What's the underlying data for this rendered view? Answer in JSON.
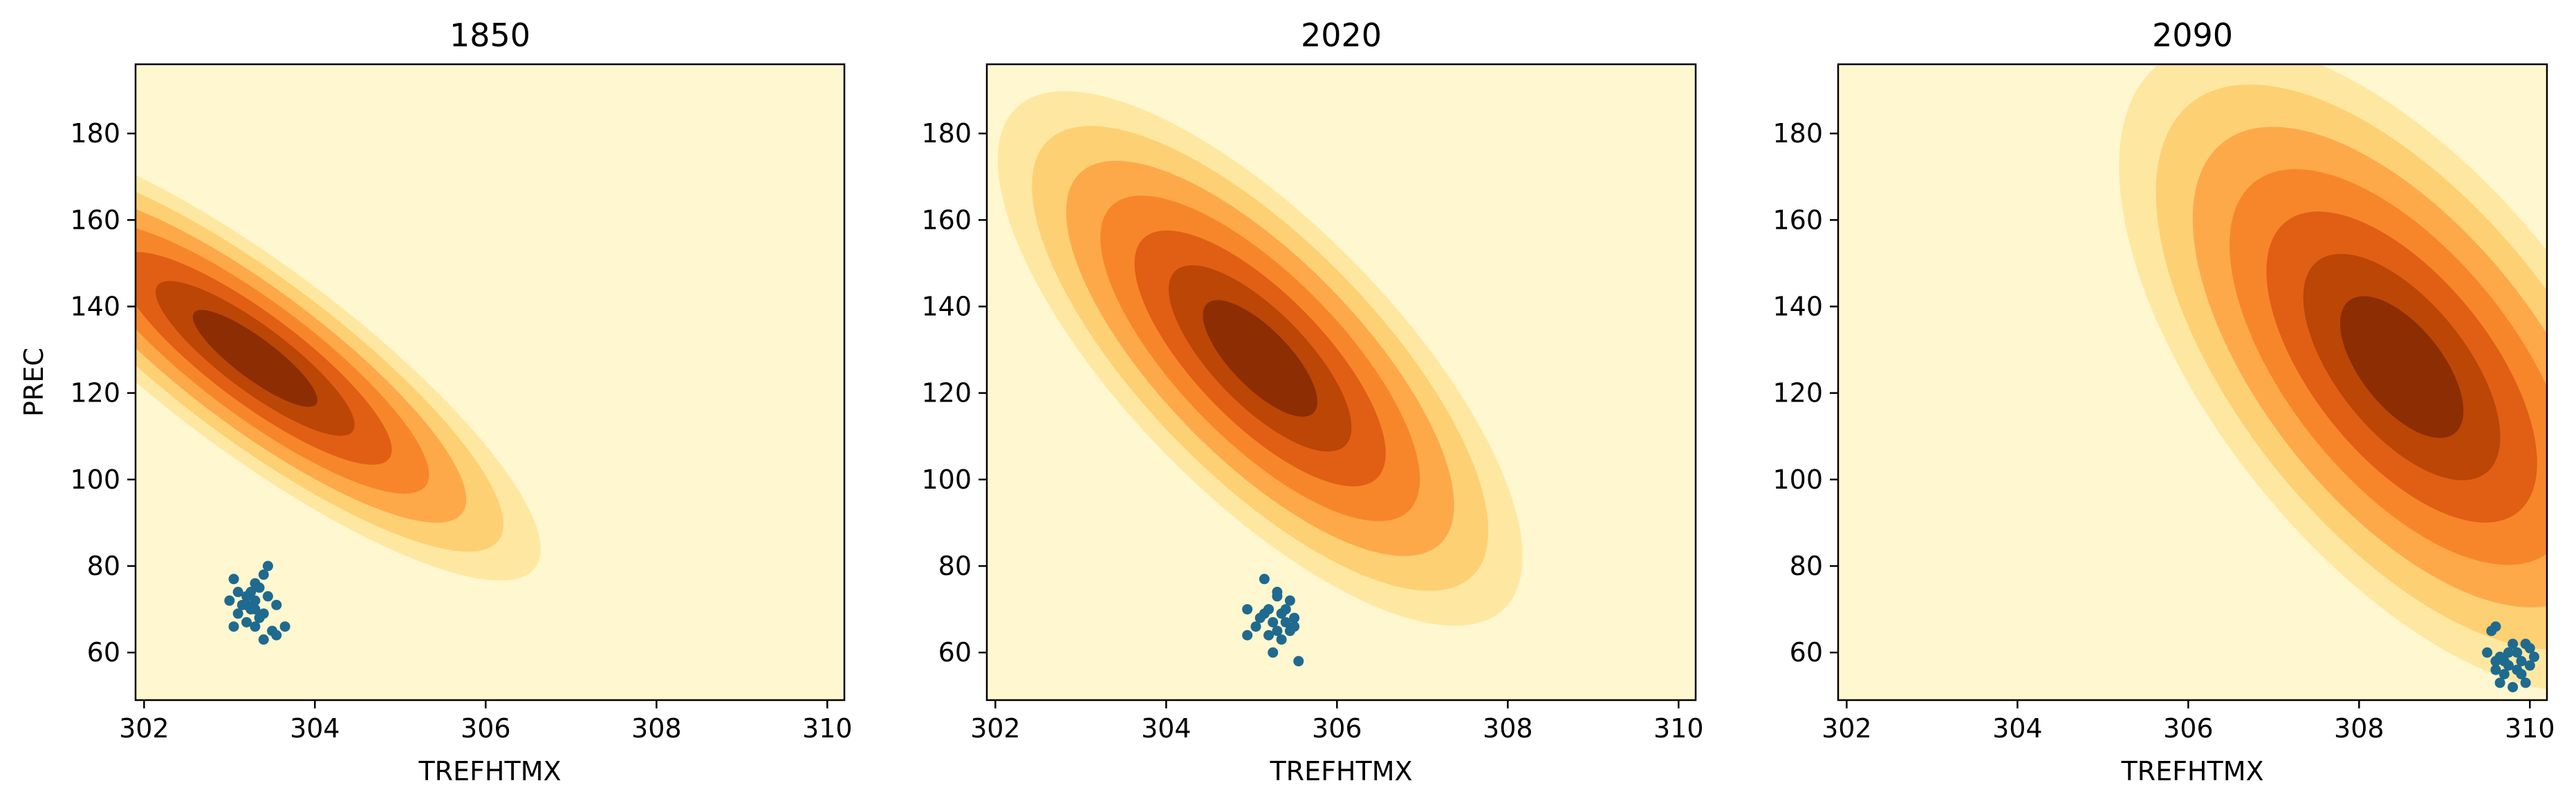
{
  "chart_data": [
    {
      "type": "scatter",
      "title": "1850",
      "xlabel": "TREFHTMX",
      "ylabel": "PREC",
      "xlim": [
        301.9,
        310.2
      ],
      "ylim": [
        49,
        196
      ],
      "xticks": [
        "302",
        "304",
        "306",
        "308",
        "310"
      ],
      "yticks": [
        "60",
        "80",
        "100",
        "120",
        "140",
        "160",
        "180"
      ],
      "grid": false,
      "density_fill": {
        "colors": [
          "#fef7cf",
          "#fee8a1",
          "#fed074",
          "#fda94a",
          "#f7862a",
          "#e05f14",
          "#bb4606",
          "#8c2d04"
        ],
        "center": [
          303.3,
          128
        ],
        "sx": 0.45,
        "sy": 27,
        "rho": -0.55
      },
      "points": [
        [
          303.05,
          77
        ],
        [
          303.25,
          74
        ],
        [
          303.45,
          80
        ],
        [
          303.4,
          78
        ],
        [
          303.3,
          76
        ],
        [
          303.1,
          74
        ],
        [
          303.2,
          73
        ],
        [
          303.35,
          75
        ],
        [
          303.0,
          72
        ],
        [
          303.15,
          71
        ],
        [
          303.3,
          72
        ],
        [
          303.45,
          73
        ],
        [
          303.55,
          71
        ],
        [
          303.25,
          70
        ],
        [
          303.1,
          69
        ],
        [
          303.4,
          69
        ],
        [
          303.35,
          68
        ],
        [
          303.2,
          67
        ],
        [
          303.05,
          66
        ],
        [
          303.3,
          66
        ],
        [
          303.65,
          66
        ],
        [
          303.5,
          65
        ],
        [
          303.4,
          63
        ],
        [
          303.55,
          64
        ],
        [
          303.2,
          71
        ],
        [
          303.3,
          70
        ]
      ]
    },
    {
      "type": "scatter",
      "title": "2020",
      "xlabel": "TREFHTMX",
      "ylabel": "",
      "xlim": [
        301.9,
        310.2
      ],
      "ylim": [
        49,
        196
      ],
      "xticks": [
        "302",
        "304",
        "306",
        "308",
        "310"
      ],
      "yticks": [
        "60",
        "80",
        "100",
        "120",
        "140",
        "160",
        "180"
      ],
      "grid": false,
      "density_fill": {
        "colors": [
          "#fef7cf",
          "#fee8a1",
          "#fed074",
          "#fda94a",
          "#f7862a",
          "#e05f14",
          "#bb4606",
          "#8c2d04"
        ],
        "center": [
          305.1,
          128
        ],
        "sx": 0.65,
        "sy": 27,
        "rho": -0.55
      },
      "points": [
        [
          305.15,
          77
        ],
        [
          305.3,
          74
        ],
        [
          305.45,
          72
        ],
        [
          305.3,
          73
        ],
        [
          304.95,
          70
        ],
        [
          305.2,
          70
        ],
        [
          305.35,
          69
        ],
        [
          305.5,
          68
        ],
        [
          305.1,
          68
        ],
        [
          305.25,
          67
        ],
        [
          305.4,
          67
        ],
        [
          305.05,
          66
        ],
        [
          305.3,
          65
        ],
        [
          305.45,
          65
        ],
        [
          304.95,
          64
        ],
        [
          305.2,
          64
        ],
        [
          305.35,
          63
        ],
        [
          305.5,
          66
        ],
        [
          305.25,
          60
        ],
        [
          305.55,
          58
        ],
        [
          305.15,
          69
        ],
        [
          305.4,
          70
        ]
      ]
    },
    {
      "type": "scatter",
      "title": "2090",
      "xlabel": "TREFHTMX",
      "ylabel": "",
      "xlim": [
        301.9,
        310.2
      ],
      "ylim": [
        49,
        196
      ],
      "xticks": [
        "302",
        "304",
        "306",
        "308",
        "310"
      ],
      "yticks": [
        "60",
        "80",
        "100",
        "120",
        "140",
        "160",
        "180"
      ],
      "grid": false,
      "density_fill": {
        "colors": [
          "#fef7cf",
          "#fee8a1",
          "#fed074",
          "#fda94a",
          "#f7862a",
          "#e05f14",
          "#bb4606",
          "#8c2d04"
        ],
        "center": [
          308.5,
          126
        ],
        "sx": 0.9,
        "sy": 30,
        "rho": -0.55
      },
      "points": [
        [
          309.6,
          66
        ],
        [
          309.55,
          65
        ],
        [
          309.5,
          60
        ],
        [
          309.65,
          59
        ],
        [
          309.8,
          62
        ],
        [
          309.95,
          62
        ],
        [
          310.0,
          61
        ],
        [
          309.85,
          60
        ],
        [
          309.7,
          58
        ],
        [
          309.9,
          58
        ],
        [
          310.05,
          59
        ],
        [
          309.75,
          57
        ],
        [
          309.6,
          56
        ],
        [
          309.85,
          56
        ],
        [
          310.0,
          57
        ],
        [
          309.7,
          55
        ],
        [
          309.9,
          55
        ],
        [
          309.65,
          53
        ],
        [
          309.8,
          52
        ],
        [
          309.95,
          53
        ],
        [
          309.75,
          60
        ],
        [
          309.6,
          58
        ]
      ]
    }
  ],
  "colors": {
    "point": "#1f6a8f",
    "axis": "#000000",
    "background_fill": "#fef7cf"
  }
}
